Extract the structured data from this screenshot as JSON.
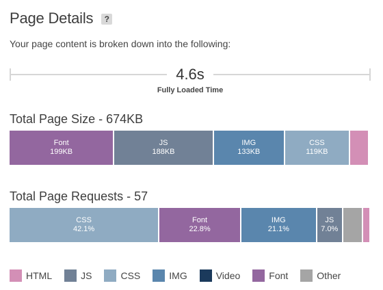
{
  "header": {
    "title": "Page Details",
    "help_icon": "?",
    "subtitle": "Your page content is broken down into the following:"
  },
  "load_time": {
    "value": "4.6s",
    "caption": "Fully Loaded Time"
  },
  "colors": {
    "HTML": "#d38fb6",
    "JS": "#718196",
    "CSS": "#8fabc2",
    "IMG": "#5a86ad",
    "Video": "#1b3a5c",
    "Font": "#93679f",
    "Other": "#a5a5a5"
  },
  "page_size": {
    "title": "Total Page Size - 674KB",
    "segments": [
      {
        "type": "Font",
        "label": "Font",
        "value": "199KB",
        "fraction": 0.292
      },
      {
        "type": "JS",
        "label": "JS",
        "value": "188KB",
        "fraction": 0.277
      },
      {
        "type": "IMG",
        "label": "IMG",
        "value": "133KB",
        "fraction": 0.197
      },
      {
        "type": "CSS",
        "label": "CSS",
        "value": "119KB",
        "fraction": 0.18
      },
      {
        "type": "HTML",
        "label": "",
        "value": "",
        "fraction": 0.05
      }
    ]
  },
  "page_requests": {
    "title": "Total Page Requests - 57",
    "segments": [
      {
        "type": "CSS",
        "label": "CSS",
        "value": "42.1%",
        "fraction": 0.421
      },
      {
        "type": "Font",
        "label": "Font",
        "value": "22.8%",
        "fraction": 0.228
      },
      {
        "type": "IMG",
        "label": "IMG",
        "value": "21.1%",
        "fraction": 0.211
      },
      {
        "type": "JS",
        "label": "JS",
        "value": "7.0%",
        "fraction": 0.07
      },
      {
        "type": "Other",
        "label": "",
        "value": "",
        "fraction": 0.053
      },
      {
        "type": "HTML",
        "label": "",
        "value": "",
        "fraction": 0.017
      }
    ]
  },
  "legend": [
    {
      "type": "HTML",
      "label": "HTML"
    },
    {
      "type": "JS",
      "label": "JS"
    },
    {
      "type": "CSS",
      "label": "CSS"
    },
    {
      "type": "IMG",
      "label": "IMG"
    },
    {
      "type": "Video",
      "label": "Video"
    },
    {
      "type": "Font",
      "label": "Font"
    },
    {
      "type": "Other",
      "label": "Other"
    }
  ]
}
